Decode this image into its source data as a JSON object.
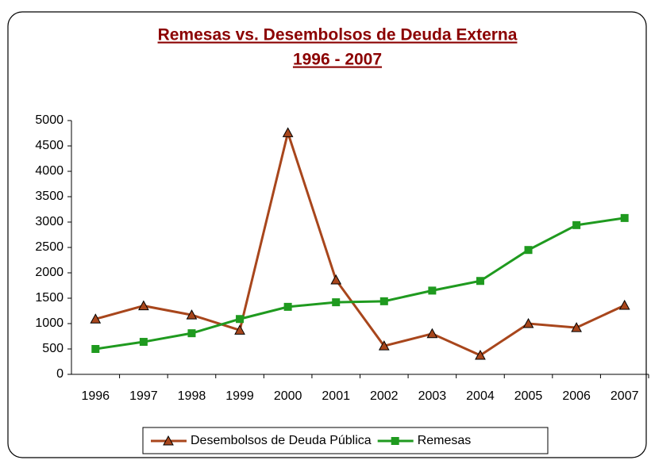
{
  "chart_data": {
    "type": "line",
    "title": "Remesas vs. Desembolsos de Deuda Externa",
    "subtitle": "1996 - 2007",
    "categories": [
      "1996",
      "1997",
      "1998",
      "1999",
      "2000",
      "2001",
      "2002",
      "2003",
      "2004",
      "2005",
      "2006",
      "2007"
    ],
    "series": [
      {
        "name": "Desembolsos de Deuda Pública",
        "color": "#a8461c",
        "marker": "triangle",
        "values": [
          1090,
          1350,
          1170,
          870,
          4760,
          1860,
          560,
          800,
          375,
          1000,
          920,
          1360
        ]
      },
      {
        "name": "Remesas",
        "color": "#1f9a1f",
        "marker": "square",
        "values": [
          500,
          640,
          810,
          1090,
          1330,
          1420,
          1440,
          1650,
          1840,
          2450,
          2940,
          3080
        ]
      }
    ],
    "ylim": [
      0,
      5000
    ],
    "yticks": [
      0,
      500,
      1000,
      1500,
      2000,
      2500,
      3000,
      3500,
      4000,
      4500,
      5000
    ],
    "grid": false,
    "legend": "bottom"
  }
}
